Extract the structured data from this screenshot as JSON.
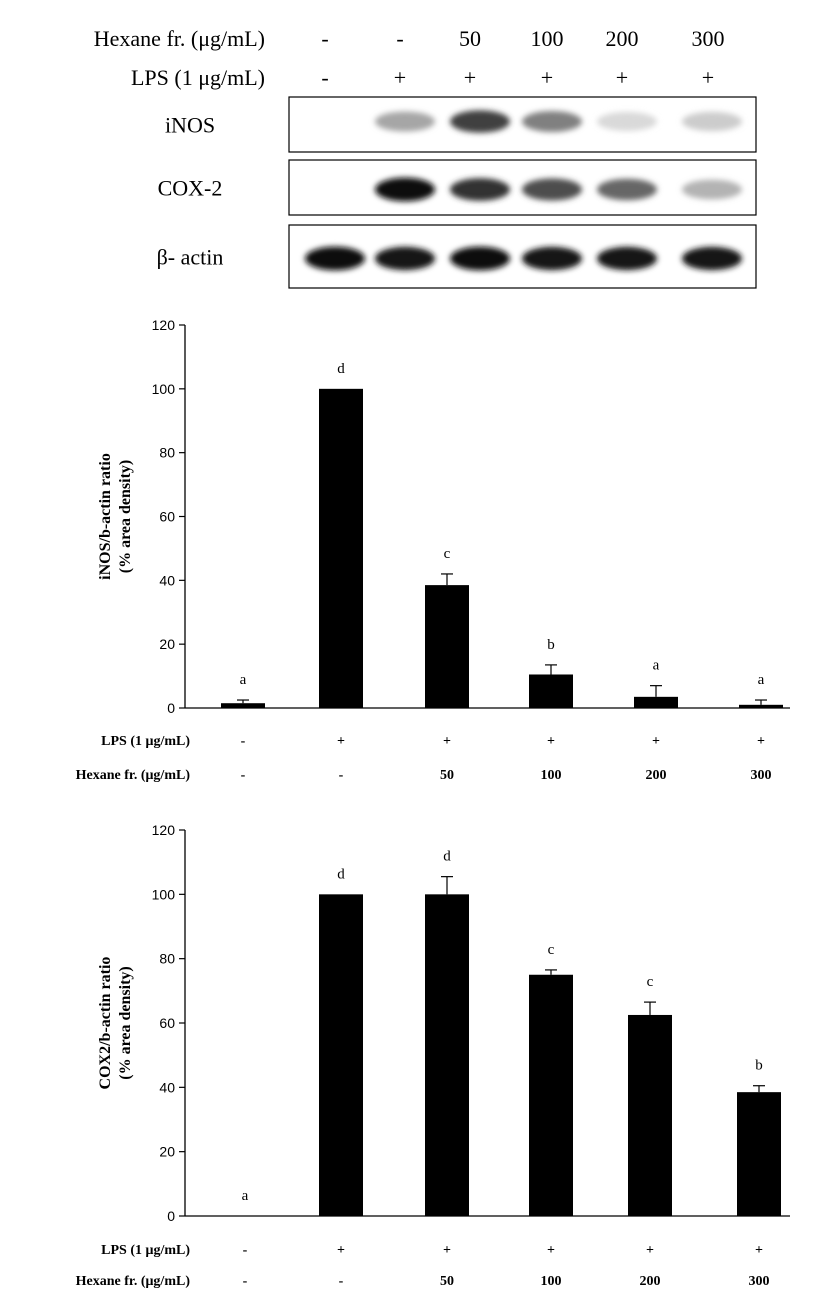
{
  "blot": {
    "rows": [
      {
        "label": "Hexane fr. (μg/mL)",
        "values": [
          "-",
          "-",
          "50",
          "100",
          "200",
          "300"
        ]
      },
      {
        "label": "LPS (1 μg/mL)",
        "values": [
          "-",
          "+",
          "+",
          "+",
          "+",
          "+"
        ]
      }
    ],
    "bands": [
      {
        "label": "iNOS",
        "intensity": [
          0.0,
          0.35,
          0.75,
          0.5,
          0.15,
          0.2
        ]
      },
      {
        "label": "COX-2",
        "intensity": [
          0.0,
          0.95,
          0.8,
          0.7,
          0.6,
          0.3
        ]
      },
      {
        "label": "β- actin",
        "intensity": [
          0.95,
          0.9,
          0.95,
          0.9,
          0.9,
          0.9
        ]
      }
    ]
  },
  "chart_data": [
    {
      "type": "bar",
      "categories": [
        "1",
        "2",
        "3",
        "4",
        "5",
        "6"
      ],
      "values": [
        1.5,
        100,
        38.5,
        10.5,
        3.5,
        1.0
      ],
      "errors": [
        1.0,
        0,
        3.5,
        3.0,
        3.5,
        1.5
      ],
      "significance": [
        "a",
        "d",
        "c",
        "b",
        "a",
        "a"
      ],
      "ylabel_line1": "iNOS/b-actin ratio",
      "ylabel_line2": "(% area density)",
      "ylim": [
        0,
        120
      ],
      "yticks": [
        "0",
        "20",
        "40",
        "60",
        "80",
        "100",
        "120"
      ],
      "conditions": [
        {
          "label": "LPS (1 μg/mL)",
          "values": [
            "-",
            "+",
            "+",
            "+",
            "+",
            "+"
          ]
        },
        {
          "label": "Hexane fr. (μg/mL)",
          "values": [
            "-",
            "-",
            "50",
            "100",
            "200",
            "300"
          ]
        }
      ]
    },
    {
      "type": "bar",
      "categories": [
        "1",
        "2",
        "3",
        "4",
        "5",
        "6"
      ],
      "values": [
        0,
        100,
        100,
        75,
        62.5,
        38.5
      ],
      "errors": [
        0,
        0,
        5.5,
        1.5,
        4.0,
        2.0
      ],
      "significance": [
        "a",
        "d",
        "d",
        "c",
        "c",
        "b"
      ],
      "ylabel_line1": "COX2/b-actin ratio",
      "ylabel_line2": "(% area density)",
      "ylim": [
        0,
        120
      ],
      "yticks": [
        "0",
        "20",
        "40",
        "60",
        "80",
        "100",
        "120"
      ],
      "conditions": [
        {
          "label": "LPS (1 μg/mL)",
          "values": [
            "-",
            "+",
            "+",
            "+",
            "+",
            "+"
          ]
        },
        {
          "label": "Hexane fr. (μg/mL)",
          "values": [
            "-",
            "-",
            "50",
            "100",
            "200",
            "300"
          ]
        }
      ]
    }
  ]
}
